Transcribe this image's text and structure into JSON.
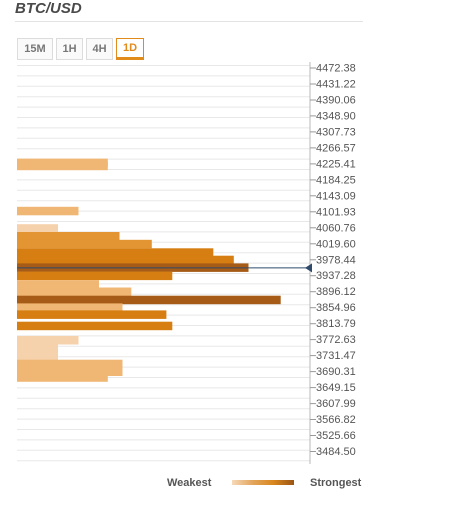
{
  "header": {
    "title": "BTC/USD"
  },
  "tabs": [
    {
      "label": "15M",
      "active": false
    },
    {
      "label": "1H",
      "active": false
    },
    {
      "label": "4H",
      "active": false
    },
    {
      "label": "1D",
      "active": true
    }
  ],
  "legend": {
    "weakest": "Weakest",
    "strongest": "Strongest"
  },
  "colors": {
    "weak": "#f5d2ab",
    "light": "#f0b774",
    "medium": "#e39533",
    "strong": "#d67e12",
    "strongest": "#a65c17",
    "grid": "#e8e8e8",
    "marker": "#2f4a6b"
  },
  "chart_data": {
    "type": "bar",
    "orientation": "horizontal",
    "title": "BTC/USD",
    "current_price": 3957.5,
    "price_ticks": [
      "4472.38",
      "4431.22",
      "4390.06",
      "4348.90",
      "4307.73",
      "4266.57",
      "4225.41",
      "4184.25",
      "4143.09",
      "4101.93",
      "4060.76",
      "4019.60",
      "3978.44",
      "3937.28",
      "3896.12",
      "3854.96",
      "3813.79",
      "3772.63",
      "3731.47",
      "3690.31",
      "3649.15",
      "3607.99",
      "3566.82",
      "3525.66",
      "3484.50"
    ],
    "price_range": [
      3474.0,
      4480.0
    ],
    "strength_scale": [
      0,
      100
    ],
    "bars": [
      {
        "price": 4228.0,
        "strength": 31,
        "level": "light"
      },
      {
        "price": 4220.0,
        "strength": 31,
        "level": "light"
      },
      {
        "price": 4104.0,
        "strength": 21,
        "level": "light"
      },
      {
        "price": 4059.0,
        "strength": 14,
        "level": "weak"
      },
      {
        "price": 4039.0,
        "strength": 35,
        "level": "medium"
      },
      {
        "price": 4019.0,
        "strength": 46,
        "level": "medium"
      },
      {
        "price": 3997.0,
        "strength": 67,
        "level": "strong"
      },
      {
        "price": 3978.0,
        "strength": 74,
        "level": "strong"
      },
      {
        "price": 3958.0,
        "strength": 79,
        "level": "strongest"
      },
      {
        "price": 3937.0,
        "strength": 53,
        "level": "strong"
      },
      {
        "price": 3915.0,
        "strength": 28,
        "level": "light"
      },
      {
        "price": 3896.0,
        "strength": 39,
        "level": "light"
      },
      {
        "price": 3875.0,
        "strength": 90,
        "level": "strongest"
      },
      {
        "price": 3855.0,
        "strength": 36,
        "level": "light"
      },
      {
        "price": 3837.0,
        "strength": 51,
        "level": "strong"
      },
      {
        "price": 3808.0,
        "strength": 53,
        "level": "strong"
      },
      {
        "price": 3771.0,
        "strength": 21,
        "level": "weak"
      },
      {
        "price": 3750.0,
        "strength": 14,
        "level": "weak"
      },
      {
        "price": 3731.0,
        "strength": 14,
        "level": "weak"
      },
      {
        "price": 3710.0,
        "strength": 36,
        "level": "light"
      },
      {
        "price": 3690.0,
        "strength": 36,
        "level": "light"
      },
      {
        "price": 3675.0,
        "strength": 31,
        "level": "light"
      }
    ]
  }
}
